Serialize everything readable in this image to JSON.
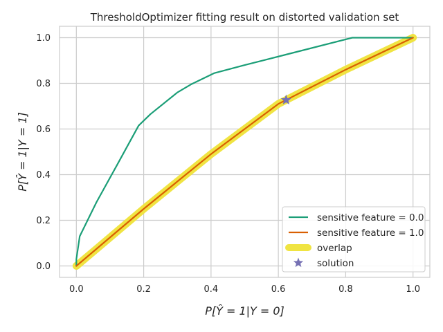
{
  "chart_data": {
    "type": "line",
    "title": "ThresholdOptimizer fitting result on distorted validation set",
    "xlabel": "P[Ŷ = 1|Y = 0]",
    "ylabel": "P[Ŷ = 1|Y = 1]",
    "xlim": [
      -0.05,
      1.05
    ],
    "ylim": [
      -0.05,
      1.05
    ],
    "xticks": [
      "0.0",
      "0.2",
      "0.4",
      "0.6",
      "0.8",
      "1.0"
    ],
    "yticks": [
      "0.0",
      "0.2",
      "0.4",
      "0.6",
      "0.8",
      "1.0"
    ],
    "grid": true,
    "legend_position": "bottom-right",
    "series": [
      {
        "name": "sensitive feature = 0.0",
        "color": "#1b9e77",
        "x": [
          0.0,
          0.0,
          0.01,
          0.06,
          0.12,
          0.185,
          0.22,
          0.3,
          0.34,
          0.41,
          0.5,
          0.62,
          0.82,
          1.0
        ],
        "y": [
          0.0,
          0.03,
          0.13,
          0.28,
          0.44,
          0.615,
          0.665,
          0.76,
          0.795,
          0.845,
          0.88,
          0.925,
          1.0,
          1.0
        ]
      },
      {
        "name": "sensitive feature = 1.0",
        "color": "#d95f02",
        "x": [
          0.0,
          0.04,
          0.2,
          0.4,
          0.6,
          0.64,
          0.8,
          1.0
        ],
        "y": [
          0.0,
          0.05,
          0.25,
          0.49,
          0.71,
          0.74,
          0.86,
          1.0
        ]
      },
      {
        "name": "overlap",
        "color": "#f0e442",
        "x": [
          0.0,
          0.04,
          0.2,
          0.4,
          0.6,
          0.64,
          0.8,
          1.0
        ],
        "y": [
          0.0,
          0.05,
          0.25,
          0.49,
          0.71,
          0.74,
          0.86,
          1.0
        ]
      },
      {
        "name": "solution",
        "color": "#7570b3",
        "marker": "star",
        "x": [
          0.623
        ],
        "y": [
          0.727
        ]
      }
    ]
  }
}
